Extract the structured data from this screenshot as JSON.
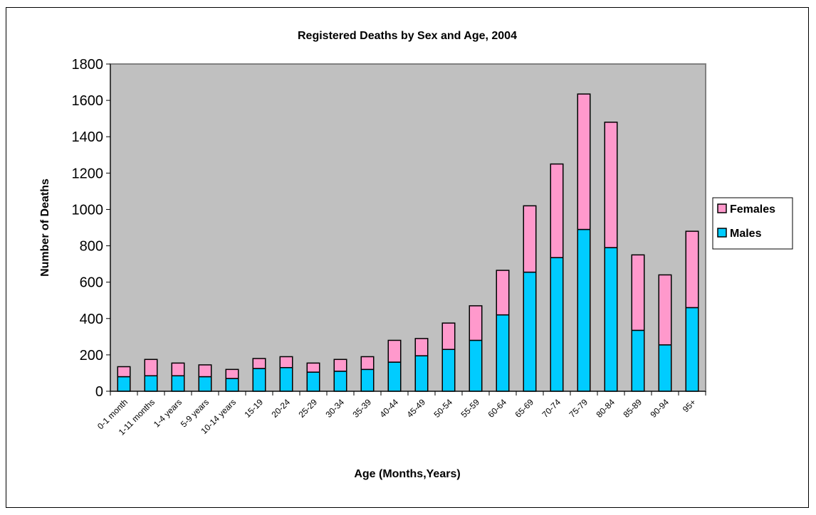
{
  "chart_data": {
    "type": "bar",
    "stacked": true,
    "title": "Registered Deaths by Sex and Age, 2004",
    "xlabel": "Age (Months,Years)",
    "ylabel": "Number of Deaths",
    "ylim": [
      0,
      1800
    ],
    "yticks": [
      "0",
      "200",
      "400",
      "600",
      "800",
      "1000",
      "1200",
      "1400",
      "1600",
      "1800"
    ],
    "grid": false,
    "legend_position": "right",
    "plot_background": "#c0c0c0",
    "categories": [
      "0-1 month",
      "1-11 months",
      "1-4 years",
      "5-9 years",
      "10-14 years",
      "15-19",
      "20-24",
      "25-29",
      "30-34",
      "35-39",
      "40-44",
      "45-49",
      "50-54",
      "55-59",
      "60-64",
      "65-69",
      "70-74",
      "75-79",
      "80-84",
      "85-89",
      "90-94",
      "95+"
    ],
    "series": [
      {
        "name": "Males",
        "color": "#00ccff",
        "values": [
          80,
          85,
          85,
          80,
          70,
          125,
          130,
          105,
          110,
          120,
          160,
          195,
          230,
          280,
          420,
          655,
          735,
          890,
          790,
          335,
          255,
          460
        ]
      },
      {
        "name": "Females",
        "color": "#ff99cc",
        "values": [
          55,
          90,
          70,
          65,
          50,
          55,
          60,
          50,
          65,
          70,
          120,
          95,
          145,
          190,
          245,
          365,
          515,
          745,
          690,
          415,
          385,
          420
        ]
      }
    ],
    "legend_order": [
      "Females",
      "Males"
    ]
  }
}
